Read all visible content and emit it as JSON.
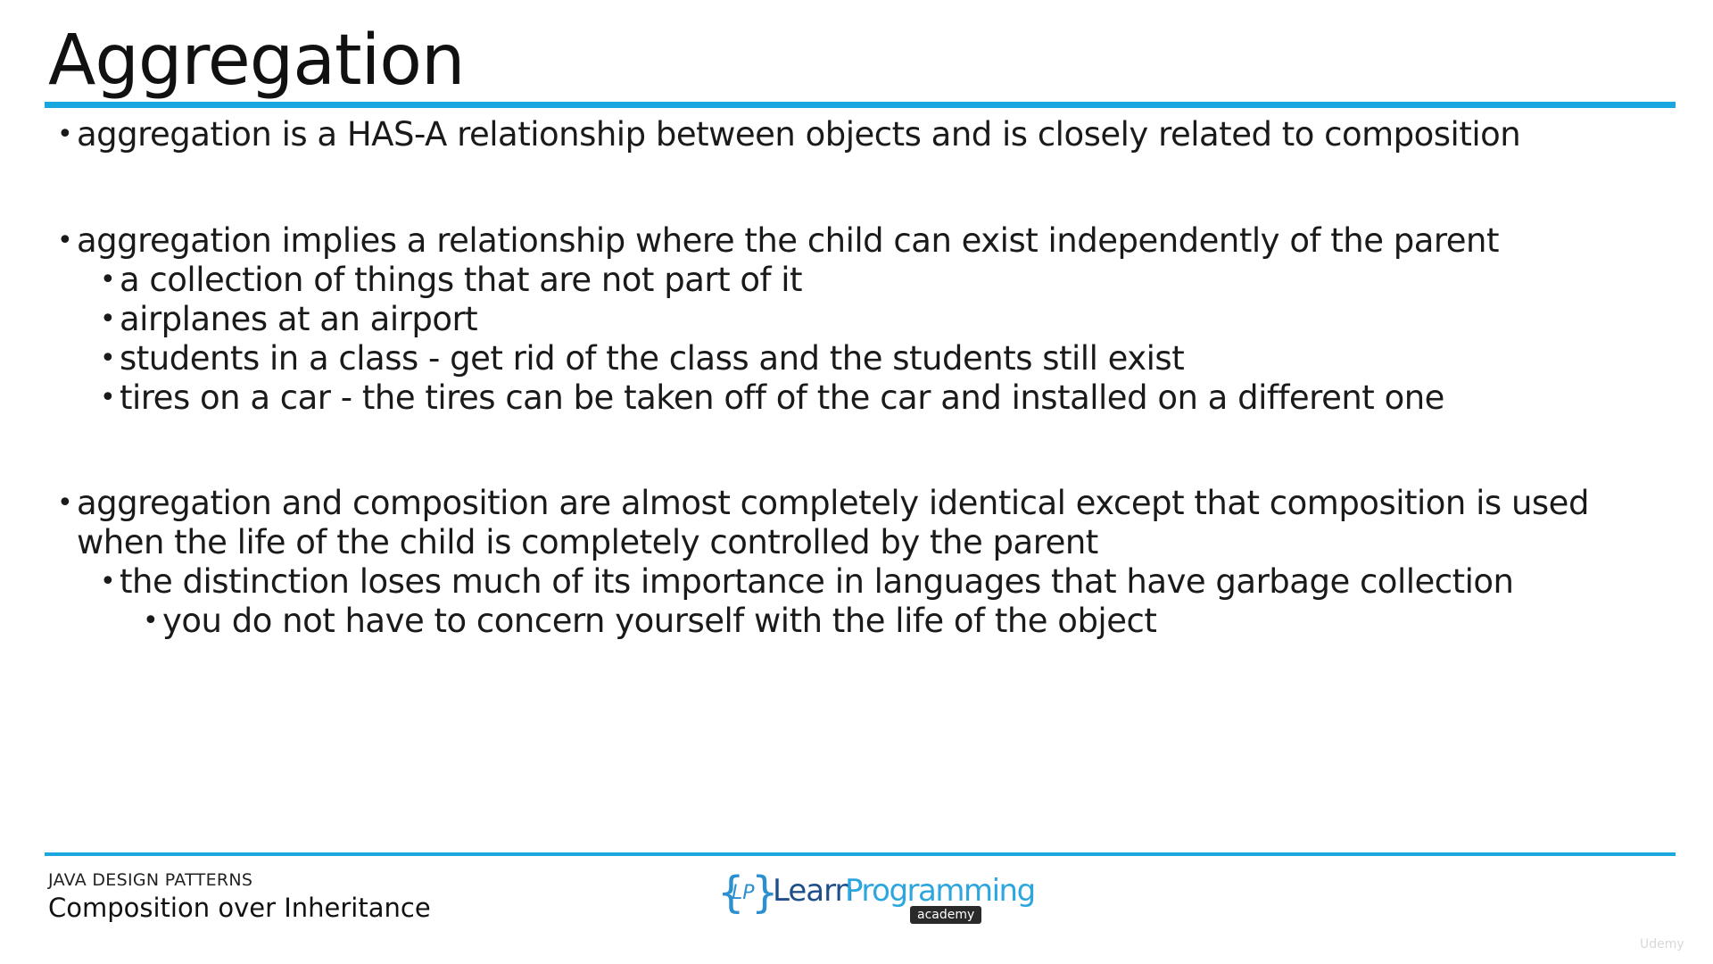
{
  "slide": {
    "title": "Aggregation",
    "bullets": [
      {
        "level": 1,
        "text": "aggregation is a HAS-A relationship between objects and is closely related to composition"
      },
      {
        "level": 1,
        "text": "aggregation implies a relationship where the child can exist independently of the parent"
      },
      {
        "level": 2,
        "text": "a collection of things that are not part of it"
      },
      {
        "level": 2,
        "text": "airplanes at an airport"
      },
      {
        "level": 2,
        "text": "students in a class - get rid of the class and the students still exist"
      },
      {
        "level": 2,
        "text": "tires on a car - the tires can be taken off of the car and installed on a different one"
      },
      {
        "level": 1,
        "text": "aggregation and composition are almost completely identical except that composition is used when the life of the child is completely controlled by the parent"
      },
      {
        "level": 2,
        "text": "the distinction loses much of its importance in languages that have garbage collection"
      },
      {
        "level": 3,
        "text": "you do not have to concern yourself with the life of the object"
      }
    ]
  },
  "footer": {
    "course": "JAVA DESIGN PATTERNS",
    "topic": "Composition over Inheritance",
    "logo": {
      "lp": "LP",
      "learn": "Learn",
      "programming": "Programming",
      "academy": "academy"
    },
    "watermark": "Udemy"
  },
  "colors": {
    "accent": "#1aa7e0",
    "logo_dark": "#1f4f8a",
    "logo_light": "#2ba6df"
  }
}
